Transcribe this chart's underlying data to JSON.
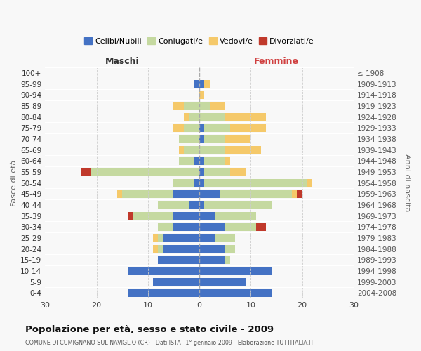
{
  "age_groups": [
    "0-4",
    "5-9",
    "10-14",
    "15-19",
    "20-24",
    "25-29",
    "30-34",
    "35-39",
    "40-44",
    "45-49",
    "50-54",
    "55-59",
    "60-64",
    "65-69",
    "70-74",
    "75-79",
    "80-84",
    "85-89",
    "90-94",
    "95-99",
    "100+"
  ],
  "birth_years": [
    "2004-2008",
    "1999-2003",
    "1994-1998",
    "1989-1993",
    "1984-1988",
    "1979-1983",
    "1974-1978",
    "1969-1973",
    "1964-1968",
    "1959-1963",
    "1954-1958",
    "1949-1953",
    "1944-1948",
    "1939-1943",
    "1934-1938",
    "1929-1933",
    "1924-1928",
    "1919-1923",
    "1914-1918",
    "1909-1913",
    "≤ 1908"
  ],
  "male_celibi": [
    14,
    9,
    14,
    8,
    7,
    7,
    5,
    5,
    2,
    5,
    1,
    0,
    1,
    0,
    0,
    0,
    0,
    0,
    0,
    1,
    0
  ],
  "male_coniugati": [
    0,
    0,
    0,
    0,
    1,
    1,
    3,
    8,
    6,
    10,
    4,
    21,
    3,
    3,
    4,
    3,
    2,
    3,
    0,
    0,
    0
  ],
  "male_vedovi": [
    0,
    0,
    0,
    0,
    1,
    1,
    0,
    0,
    0,
    1,
    0,
    0,
    0,
    1,
    0,
    2,
    1,
    2,
    0,
    0,
    0
  ],
  "male_divorziati": [
    0,
    0,
    0,
    0,
    0,
    0,
    0,
    1,
    0,
    0,
    0,
    2,
    0,
    0,
    0,
    0,
    0,
    0,
    0,
    0,
    0
  ],
  "female_nubili": [
    14,
    9,
    14,
    5,
    5,
    3,
    5,
    3,
    1,
    4,
    1,
    1,
    1,
    0,
    1,
    1,
    0,
    0,
    0,
    1,
    0
  ],
  "female_coniugate": [
    0,
    0,
    0,
    1,
    2,
    4,
    6,
    8,
    13,
    14,
    20,
    5,
    4,
    5,
    4,
    5,
    5,
    2,
    0,
    0,
    0
  ],
  "female_vedove": [
    0,
    0,
    0,
    0,
    0,
    0,
    0,
    0,
    0,
    1,
    1,
    3,
    1,
    7,
    5,
    7,
    8,
    3,
    1,
    1,
    0
  ],
  "female_divorziate": [
    0,
    0,
    0,
    0,
    0,
    0,
    2,
    0,
    0,
    1,
    0,
    0,
    0,
    0,
    0,
    0,
    0,
    0,
    0,
    0,
    0
  ],
  "color_celibi": "#4472c4",
  "color_coniugati": "#c5d9a0",
  "color_vedovi": "#f5c96a",
  "color_divorziati": "#c0392b",
  "xlim": 30,
  "title": "Popolazione per età, sesso e stato civile - 2009",
  "subtitle": "COMUNE DI CUMIGNANO SUL NAVIGLIO (CR) - Dati ISTAT 1° gennaio 2009 - Elaborazione TUTTITALIA.IT",
  "ylabel_left": "Fasce di età",
  "ylabel_right": "Anni di nascita",
  "label_maschi": "Maschi",
  "label_femmine": "Femmine",
  "bg_color": "#f8f8f8",
  "legend_labels": [
    "Celibi/Nubili",
    "Coniugati/e",
    "Vedovi/e",
    "Divorziati/e"
  ]
}
